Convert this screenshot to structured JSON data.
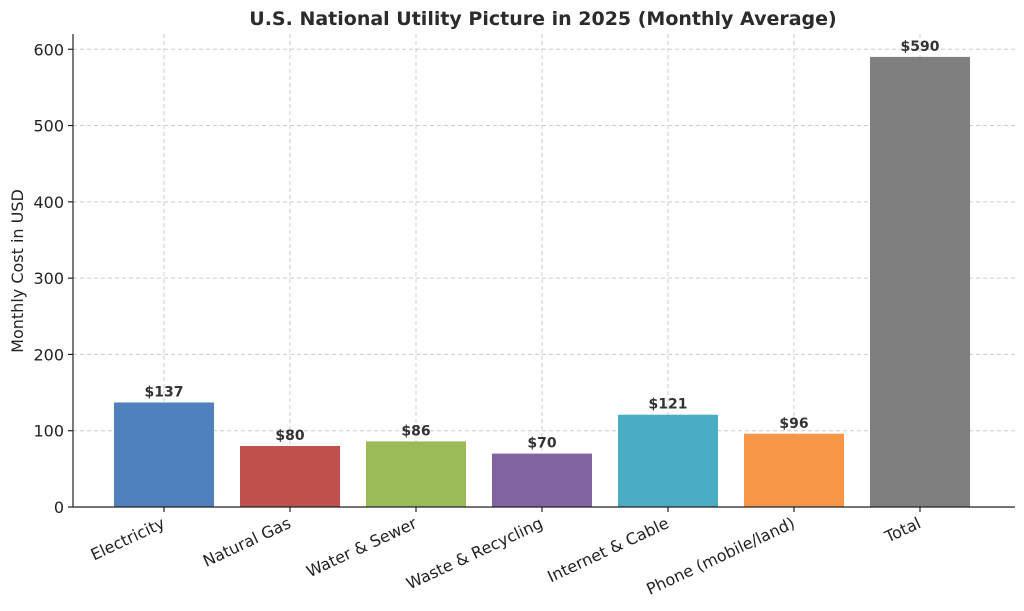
{
  "chart_data": {
    "type": "bar",
    "title": "U.S. National Utility Picture in 2025 (Monthly Average)",
    "xlabel": "",
    "ylabel": "Monthly Cost in USD",
    "categories": [
      "Electricity",
      "Natural Gas",
      "Water & Sewer",
      "Waste & Recycling",
      "Internet & Cable",
      "Phone (mobile/land)",
      "Total"
    ],
    "values": [
      137,
      80,
      86,
      70,
      121,
      96,
      590
    ],
    "data_labels": [
      "$137",
      "$80",
      "$86",
      "$70",
      "$121",
      "$96",
      "$590"
    ],
    "colors": [
      "#4f81bd",
      "#c0504d",
      "#9bbb59",
      "#8064a2",
      "#4bacc6",
      "#f79646",
      "#7f7f7f"
    ],
    "ylim": [
      0,
      620
    ],
    "yticks": [
      0,
      100,
      200,
      300,
      400,
      500,
      600
    ],
    "grid": true,
    "legend": "none"
  }
}
